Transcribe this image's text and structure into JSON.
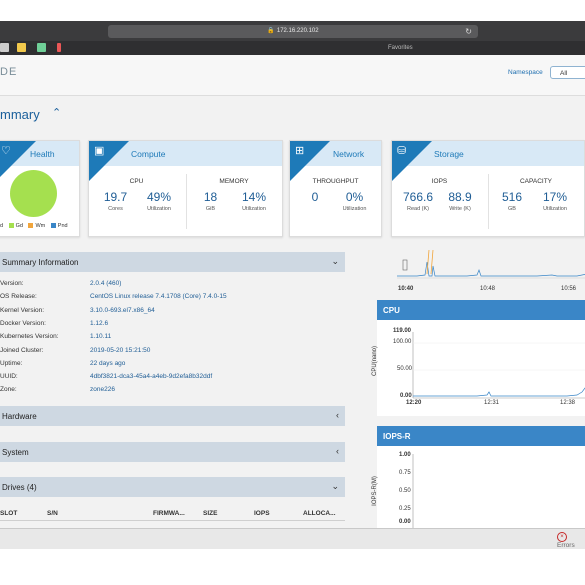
{
  "browser": {
    "url": "172.16.220.102",
    "favorites": "Favorites"
  },
  "app": {
    "logo": "DE",
    "namespace_label": "Namespace",
    "namespace_value": "All",
    "summary_title": "mmary"
  },
  "cards": {
    "health": {
      "title": "Health",
      "legend": [
        "d",
        "Gd",
        "Wm",
        "Pnd"
      ],
      "legend_colors": [
        "#ffffff",
        "#a5e04f",
        "#f1a53c",
        "#3a86c7"
      ]
    },
    "compute": {
      "title": "Compute",
      "cpu": {
        "label": "CPU",
        "v1": "19.7",
        "s1": "Cores",
        "v2": "49%",
        "s2": "Utilization"
      },
      "memory": {
        "label": "MEMORY",
        "v1": "18",
        "s1": "GiB",
        "v2": "14%",
        "s2": "Utilization"
      }
    },
    "network": {
      "title": "Network",
      "throughput": {
        "label": "THROUGHPUT",
        "v1": "0",
        "v2": "0%",
        "s2": "Utilization"
      }
    },
    "storage": {
      "title": "Storage",
      "iops": {
        "label": "IOPS",
        "v1": "766.6",
        "s1": "Read (K)",
        "v2": "88.9",
        "s2": "Write (K)"
      },
      "capacity": {
        "label": "CAPACITY",
        "v1": "516",
        "s1": "GB",
        "v2": "17%",
        "s2": "Utilization"
      }
    }
  },
  "summary_info": {
    "title": "Summary Information",
    "rows": [
      {
        "k": "Version:",
        "v": "2.0.4 (460)"
      },
      {
        "k": "OS Release:",
        "v": "CentOS Linux release 7.4.1708 (Core) 7.4.0-15"
      },
      {
        "k": "Kernel Version:",
        "v": "3.10.0-693.el7.x86_64"
      },
      {
        "k": "Docker Version:",
        "v": "1.12.6"
      },
      {
        "k": "Kubernetes Version:",
        "v": "1.10.11"
      },
      {
        "k": "Joined Cluster:",
        "v": "2019-05-20 15:21:50"
      },
      {
        "k": "Uptime:",
        "v": "22 days ago"
      },
      {
        "k": "UUID:",
        "v": "4dbf3821-dca3-45a4-a4eb-9d2efa8b32ddf"
      },
      {
        "k": "Zone:",
        "v": "zone226"
      }
    ]
  },
  "sections": {
    "hardware": "Hardware",
    "system": "System",
    "drives": "Drives (4)"
  },
  "drives_columns": [
    "SLOT",
    "S/N",
    "FIRMWA...",
    "SIZE",
    "IOPS",
    "ALLOCA..."
  ],
  "charts_right": {
    "top_ticks": [
      "10:40",
      "10:48",
      "10:56"
    ],
    "cpu": {
      "title": "CPU",
      "ylabel": "CPU(nano)",
      "y_ticks": [
        "119.00",
        "100.00",
        "50.00",
        "0.00"
      ],
      "x_ticks": [
        "12:20",
        "12:31",
        "12:38"
      ]
    },
    "iops_r": {
      "title": "IOPS-R",
      "ylabel": "IOPS-R(M)",
      "y_ticks": [
        "1.00",
        "0.75",
        "0.50",
        "0.25",
        "0.00"
      ]
    }
  },
  "status": {
    "errors": "Errors"
  }
}
